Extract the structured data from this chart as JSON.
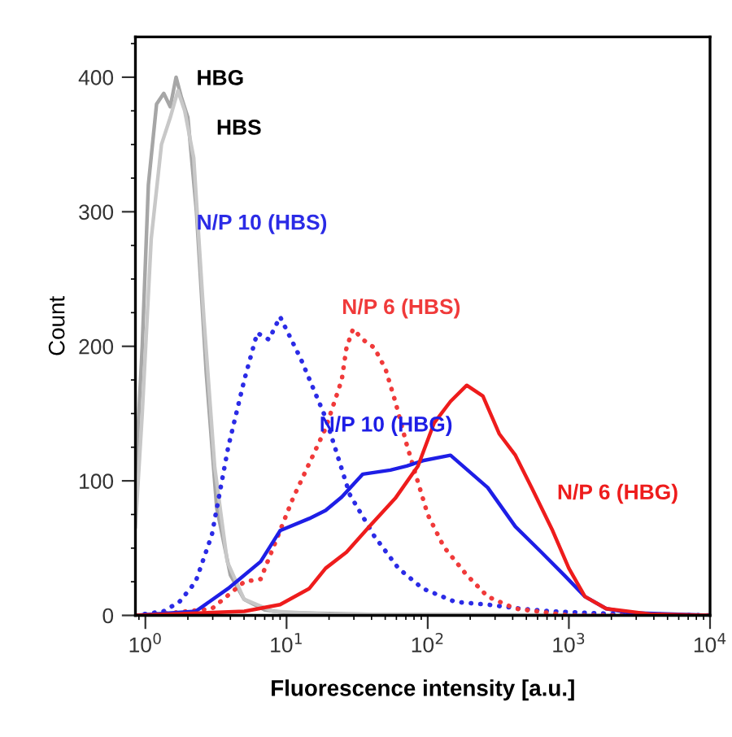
{
  "chart_data": {
    "type": "line",
    "xlabel": "Fluorescence intensity [a.u.]",
    "ylabel": "Count",
    "log": "x",
    "xlim": [
      0.85,
      10000
    ],
    "xticks": [
      {
        "value": 1,
        "label": "10$^{0}$"
      },
      {
        "value": 10,
        "label": "10$^{1}$"
      },
      {
        "value": 100,
        "label": "10$^{2}$"
      },
      {
        "value": 1000,
        "label": "10$^{3}$"
      },
      {
        "value": 10000,
        "label": "10$^{4}$"
      }
    ],
    "ylim": [
      0,
      430
    ],
    "yticks": [
      0,
      100,
      200,
      300,
      400
    ],
    "grid": false,
    "legend": false,
    "marker": "none",
    "series": [
      {
        "name": "HBG",
        "color": "#a6a6a6",
        "line_style": "solid",
        "x": [
          0.85,
          0.95,
          1.05,
          1.2,
          1.35,
          1.5,
          1.65,
          1.8,
          2.0,
          2.3,
          2.7,
          3.2,
          4,
          5,
          7,
          10,
          100,
          10000
        ],
        "values": [
          100,
          200,
          320,
          380,
          388,
          378,
          400,
          385,
          370,
          300,
          180,
          80,
          30,
          12,
          4,
          2,
          0,
          0
        ]
      },
      {
        "name": "HBS",
        "color": "#c8c8c8",
        "line_style": "solid",
        "x": [
          0.85,
          0.95,
          1.1,
          1.3,
          1.5,
          1.7,
          1.9,
          2.2,
          2.6,
          3.1,
          3.8,
          5,
          8,
          20,
          10000
        ],
        "values": [
          66,
          150,
          280,
          350,
          370,
          390,
          375,
          340,
          220,
          110,
          40,
          12,
          3,
          1,
          0
        ]
      },
      {
        "name": "N/P 10 (HBS)",
        "color": "#2b2be6",
        "line_style": "dotted",
        "x": [
          0.85,
          1.34,
          1.74,
          2.27,
          2.96,
          3.86,
          5.02,
          6.2,
          7.5,
          9.0,
          12.7,
          18.9,
          28,
          41.8,
          62,
          92,
          157,
          266,
          452,
          762,
          2200,
          10000
        ],
        "values": [
          0,
          3,
          10,
          25,
          60,
          125,
          175,
          210,
          205,
          222,
          190,
          147,
          90,
          59,
          35,
          20,
          10,
          8,
          5,
          3,
          1,
          0
        ]
      },
      {
        "name": "N/P 6 (HBS)",
        "color": "#f03a3a",
        "line_style": "dotted",
        "x": [
          1.03,
          2.96,
          5.02,
          6.55,
          11.1,
          18.9,
          24.6,
          26.6,
          29.6,
          34.7,
          41.8,
          50.3,
          58.9,
          71.0,
          85.3,
          100,
          130,
          189,
          266,
          418,
          1000,
          10000
        ],
        "values": [
          0,
          5,
          25,
          27,
          87,
          139,
          175,
          199,
          213,
          205,
          199,
          183,
          159,
          127,
          99,
          75,
          51,
          30,
          14,
          5,
          0,
          0
        ]
      },
      {
        "name": "N/P 10 (HBG)",
        "color": "#1e1ee6",
        "line_style": "solid",
        "x": [
          0.85,
          2.27,
          3.86,
          6.55,
          9.0,
          14.5,
          18.9,
          24.6,
          34.7,
          54.4,
          71.0,
          92.4,
          145,
          266,
          418,
          638,
          925,
          1300,
          1840,
          2660,
          10000
        ],
        "values": [
          0,
          3,
          20,
          40,
          63,
          72,
          78,
          88,
          105,
          108,
          111,
          115,
          119,
          95,
          66,
          47,
          30,
          14,
          5,
          2,
          0
        ]
      },
      {
        "name": "N/P 6 (HBG)",
        "color": "#ee1c1c",
        "line_style": "solid",
        "x": [
          0.85,
          5.02,
          9.0,
          14.5,
          18.9,
          26.6,
          38.6,
          58.9,
          85.3,
          111,
          145,
          189,
          246,
          321,
          418,
          545,
          767,
          1000,
          1300,
          1840,
          3760,
          10000
        ],
        "values": [
          0,
          3,
          8,
          20,
          35,
          47,
          66,
          87,
          111,
          143,
          159,
          171,
          163,
          135,
          119,
          95,
          63,
          35,
          14,
          5,
          1,
          0
        ]
      }
    ]
  }
}
